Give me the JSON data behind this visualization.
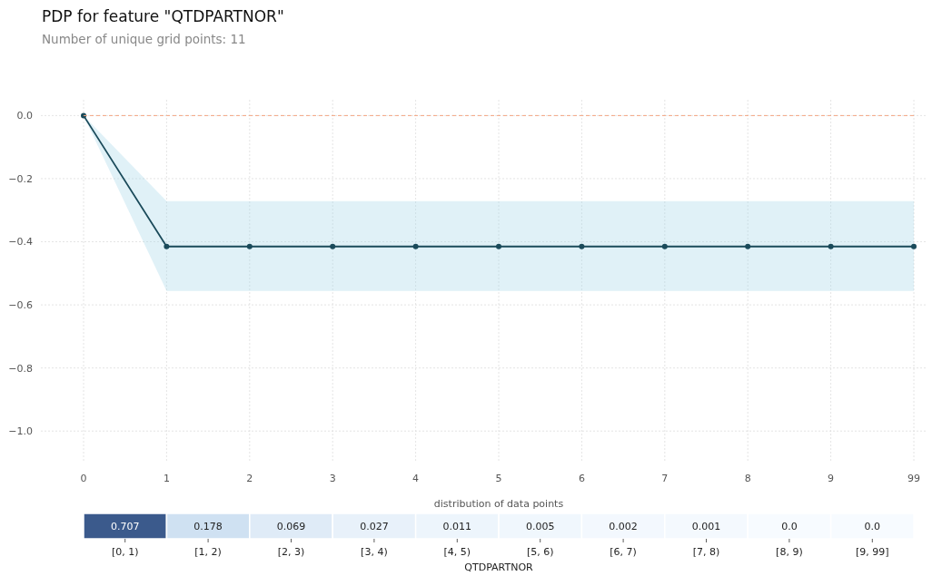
{
  "chart_data": [
    {
      "type": "line",
      "title": "PDP for feature \"QTDPARTNOR\"",
      "subtitle": "Number of unique grid points: 11",
      "categories": [
        "0",
        "1",
        "2",
        "3",
        "4",
        "5",
        "6",
        "7",
        "8",
        "9",
        "99"
      ],
      "series": [
        {
          "color": "#1a4a5a",
          "values": [
            0,
            -0.415,
            -0.415,
            -0.415,
            -0.415,
            -0.415,
            -0.415,
            -0.415,
            -0.415,
            -0.415,
            -0.415
          ],
          "lower": [
            0,
            -0.556,
            -0.556,
            -0.556,
            -0.556,
            -0.556,
            -0.556,
            -0.556,
            -0.556,
            -0.556,
            -0.556
          ],
          "upper": [
            0,
            -0.271,
            -0.271,
            -0.271,
            -0.271,
            -0.271,
            -0.271,
            -0.271,
            -0.271,
            -0.271,
            -0.271
          ]
        }
      ],
      "ylim": [
        -1.1,
        0.05
      ],
      "yticks": [
        {
          "value": 0,
          "label": "0.0"
        },
        {
          "value": -0.2,
          "label": "−0.2"
        },
        {
          "value": -0.4,
          "label": "−0.4"
        },
        {
          "value": -0.6,
          "label": "−0.6"
        },
        {
          "value": -0.8,
          "label": "−0.8"
        },
        {
          "value": -1.0,
          "label": "−1.0"
        }
      ],
      "grid": true,
      "marker": "circle",
      "line_style": "solid",
      "ref_lines": [
        {
          "axis": "y",
          "value": 0,
          "color": "#f4a582",
          "line_style": "dashed"
        }
      ]
    },
    {
      "type": "heatmap",
      "title": "distribution of data points",
      "xlabel": "QTDPARTNOR",
      "categories": [
        "[0, 1)",
        "[1, 2)",
        "[2, 3)",
        "[3, 4)",
        "[4, 5)",
        "[5, 6)",
        "[6, 7)",
        "[7, 8)",
        "[8, 9)",
        "[9, 99]"
      ],
      "y_categories": [
        null
      ],
      "cells": [
        [
          0.707,
          0.178,
          0.069,
          0.027,
          0.011,
          0.005,
          0.002,
          0.001,
          0.0,
          0.0
        ]
      ],
      "cell_labels": [
        [
          "0.707",
          "0.178",
          "0.069",
          "0.027",
          "0.011",
          "0.005",
          "0.002",
          "0.001",
          "0.0",
          "0.0"
        ]
      ]
    }
  ]
}
